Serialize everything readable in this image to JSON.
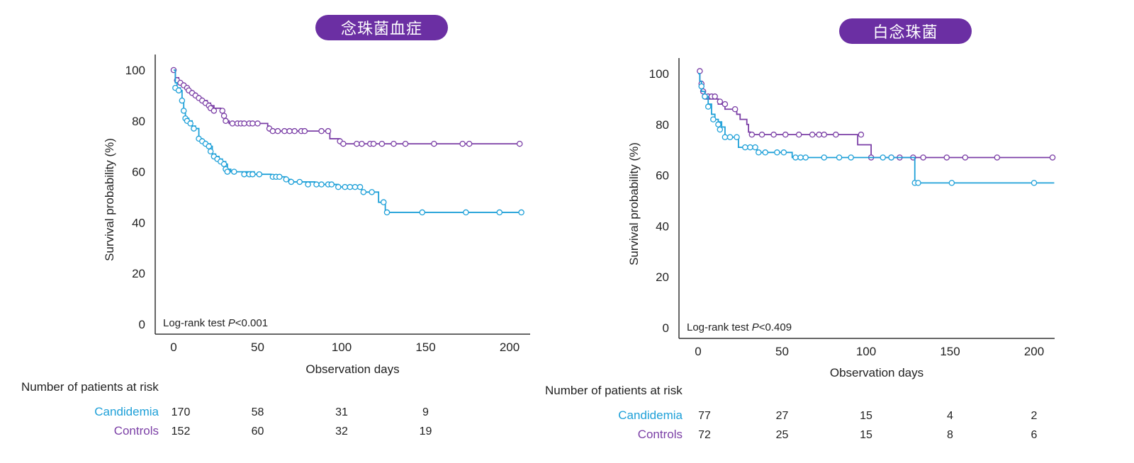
{
  "colors": {
    "candidemia": "#1ea0d8",
    "controls": "#7b3fa6",
    "title_bg": "#6b2fa3"
  },
  "chart_data": [
    {
      "type": "line",
      "subtype": "kaplan-meier",
      "title": "念珠菌血症",
      "xlabel": "Observation days",
      "ylabel": "Survival probability (%)",
      "xlim": [
        0,
        210
      ],
      "ylim": [
        0,
        100
      ],
      "x_ticks": [
        "0",
        "50",
        "100",
        "150",
        "200"
      ],
      "y_ticks": [
        "0",
        "20",
        "40",
        "60",
        "80",
        "100"
      ],
      "annotation_text": "Log-rank test ",
      "annotation_p": "P",
      "annotation_value": "<0.001",
      "series": [
        {
          "name": "Controls",
          "color_key": "controls",
          "steps": [
            [
              0,
              100
            ],
            [
              1,
              97
            ],
            [
              3,
              95
            ],
            [
              5,
              94
            ],
            [
              7,
              93
            ],
            [
              9,
              92
            ],
            [
              11,
              91
            ],
            [
              13,
              90
            ],
            [
              15,
              89
            ],
            [
              17,
              88
            ],
            [
              20,
              87
            ],
            [
              22,
              86
            ],
            [
              24,
              85
            ],
            [
              28,
              84
            ],
            [
              30,
              82
            ],
            [
              31,
              80
            ],
            [
              33,
              79
            ],
            [
              56,
              78
            ],
            [
              57,
              76
            ],
            [
              92,
              76
            ],
            [
              93,
              73
            ],
            [
              98,
              73
            ],
            [
              99,
              71
            ],
            [
              207,
              71
            ]
          ],
          "censors": [
            [
              0,
              100
            ],
            [
              2,
              96
            ],
            [
              4,
              95
            ],
            [
              6,
              94
            ],
            [
              8,
              93
            ],
            [
              9,
              92
            ],
            [
              11,
              91
            ],
            [
              13,
              90
            ],
            [
              15,
              89
            ],
            [
              17,
              88
            ],
            [
              19,
              87
            ],
            [
              21,
              86
            ],
            [
              22,
              85
            ],
            [
              24,
              84
            ],
            [
              29,
              84
            ],
            [
              30,
              82
            ],
            [
              31,
              80
            ],
            [
              35,
              79
            ],
            [
              38,
              79
            ],
            [
              40,
              79
            ],
            [
              42,
              79
            ],
            [
              45,
              79
            ],
            [
              47,
              79
            ],
            [
              50,
              79
            ],
            [
              57,
              77
            ],
            [
              59,
              76
            ],
            [
              62,
              76
            ],
            [
              66,
              76
            ],
            [
              69,
              76
            ],
            [
              72,
              76
            ],
            [
              76,
              76
            ],
            [
              78,
              76
            ],
            [
              88,
              76
            ],
            [
              92,
              76
            ],
            [
              99,
              72
            ],
            [
              101,
              71
            ],
            [
              109,
              71
            ],
            [
              112,
              71
            ],
            [
              117,
              71
            ],
            [
              119,
              71
            ],
            [
              124,
              71
            ],
            [
              131,
              71
            ],
            [
              138,
              71
            ],
            [
              155,
              71
            ],
            [
              172,
              71
            ],
            [
              176,
              71
            ],
            [
              206,
              71
            ]
          ]
        },
        {
          "name": "Candidemia",
          "color_key": "candidemia",
          "steps": [
            [
              0,
              100
            ],
            [
              1,
              95
            ],
            [
              2,
              93
            ],
            [
              4,
              92
            ],
            [
              5,
              88
            ],
            [
              6,
              84
            ],
            [
              7,
              81
            ],
            [
              9,
              80
            ],
            [
              11,
              78
            ],
            [
              13,
              77
            ],
            [
              15,
              73
            ],
            [
              17,
              72
            ],
            [
              19,
              71
            ],
            [
              22,
              70
            ],
            [
              23,
              67
            ],
            [
              25,
              66
            ],
            [
              27,
              65
            ],
            [
              29,
              64
            ],
            [
              31,
              63
            ],
            [
              32,
              61
            ],
            [
              34,
              60
            ],
            [
              42,
              60
            ],
            [
              48,
              59
            ],
            [
              58,
              58
            ],
            [
              67,
              57
            ],
            [
              70,
              56
            ],
            [
              81,
              56
            ],
            [
              84,
              55
            ],
            [
              96,
              55
            ],
            [
              98,
              54
            ],
            [
              110,
              54
            ],
            [
              112,
              52
            ],
            [
              121,
              52
            ],
            [
              122,
              48
            ],
            [
              124,
              48
            ],
            [
              126,
              44
            ],
            [
              207,
              44
            ]
          ],
          "censors": [
            [
              1,
              93
            ],
            [
              3,
              92
            ],
            [
              5,
              88
            ],
            [
              6,
              84
            ],
            [
              7,
              81
            ],
            [
              8,
              80
            ],
            [
              10,
              79
            ],
            [
              12,
              77
            ],
            [
              15,
              73
            ],
            [
              17,
              72
            ],
            [
              19,
              71
            ],
            [
              21,
              70
            ],
            [
              22,
              68
            ],
            [
              24,
              66
            ],
            [
              26,
              65
            ],
            [
              28,
              64
            ],
            [
              30,
              63
            ],
            [
              31,
              61
            ],
            [
              32,
              60
            ],
            [
              36,
              60
            ],
            [
              42,
              59
            ],
            [
              45,
              59
            ],
            [
              47,
              59
            ],
            [
              51,
              59
            ],
            [
              59,
              58
            ],
            [
              61,
              58
            ],
            [
              63,
              58
            ],
            [
              67,
              57
            ],
            [
              70,
              56
            ],
            [
              75,
              56
            ],
            [
              80,
              55
            ],
            [
              85,
              55
            ],
            [
              88,
              55
            ],
            [
              92,
              55
            ],
            [
              94,
              55
            ],
            [
              98,
              54
            ],
            [
              102,
              54
            ],
            [
              105,
              54
            ],
            [
              108,
              54
            ],
            [
              111,
              54
            ],
            [
              113,
              52
            ],
            [
              118,
              52
            ],
            [
              125,
              48
            ],
            [
              127,
              44
            ],
            [
              148,
              44
            ],
            [
              174,
              44
            ],
            [
              194,
              44
            ],
            [
              207,
              44
            ]
          ]
        }
      ],
      "risk_table": {
        "header": "Number of patients at risk",
        "timepoints": [
          0,
          50,
          100,
          150
        ],
        "rows": [
          {
            "label": "Candidemia",
            "color_key": "candidemia",
            "values": [
              "170",
              "58",
              "31",
              "9"
            ]
          },
          {
            "label": "Controls",
            "color_key": "controls",
            "values": [
              "152",
              "60",
              "32",
              "19"
            ]
          }
        ]
      }
    },
    {
      "type": "line",
      "subtype": "kaplan-meier",
      "title": "白念珠菌",
      "xlabel": "Observation days",
      "ylabel": "Survival probability (%)",
      "xlim": [
        0,
        212
      ],
      "ylim": [
        0,
        100
      ],
      "x_ticks": [
        "0",
        "50",
        "100",
        "150",
        "200"
      ],
      "y_ticks": [
        "0",
        "20",
        "40",
        "60",
        "80",
        "100"
      ],
      "annotation_text": "Log-rank test ",
      "annotation_p": "P",
      "annotation_value": "<0.409",
      "series": [
        {
          "name": "Controls",
          "color_key": "controls",
          "steps": [
            [
              0,
              100
            ],
            [
              1,
              97
            ],
            [
              2,
              94
            ],
            [
              3,
              92
            ],
            [
              4,
              90
            ],
            [
              9,
              90
            ],
            [
              12,
              88
            ],
            [
              16,
              86
            ],
            [
              23,
              84
            ],
            [
              25,
              82
            ],
            [
              29,
              80
            ],
            [
              30,
              77
            ],
            [
              31,
              76
            ],
            [
              94,
              76
            ],
            [
              95,
              72
            ],
            [
              102,
              72
            ],
            [
              103,
              67
            ],
            [
              212,
              67
            ]
          ],
          "censors": [
            [
              1,
              101
            ],
            [
              2,
              96
            ],
            [
              3,
              93
            ],
            [
              4,
              91
            ],
            [
              6,
              91
            ],
            [
              8,
              91
            ],
            [
              10,
              91
            ],
            [
              13,
              89
            ],
            [
              16,
              88
            ],
            [
              22,
              86
            ],
            [
              32,
              76
            ],
            [
              38,
              76
            ],
            [
              45,
              76
            ],
            [
              52,
              76
            ],
            [
              60,
              76
            ],
            [
              68,
              76
            ],
            [
              72,
              76
            ],
            [
              75,
              76
            ],
            [
              82,
              76
            ],
            [
              97,
              76
            ],
            [
              103,
              67
            ],
            [
              115,
              67
            ],
            [
              120,
              67
            ],
            [
              128,
              67
            ],
            [
              134,
              67
            ],
            [
              148,
              67
            ],
            [
              159,
              67
            ],
            [
              178,
              67
            ],
            [
              211,
              67
            ]
          ]
        },
        {
          "name": "Candidemia",
          "color_key": "candidemia",
          "steps": [
            [
              0,
              100
            ],
            [
              1,
              97
            ],
            [
              2,
              93
            ],
            [
              4,
              91
            ],
            [
              6,
              88
            ],
            [
              8,
              84
            ],
            [
              10,
              82
            ],
            [
              12,
              81
            ],
            [
              14,
              79
            ],
            [
              16,
              75
            ],
            [
              22,
              75
            ],
            [
              24,
              71
            ],
            [
              33,
              71
            ],
            [
              35,
              69
            ],
            [
              55,
              69
            ],
            [
              56,
              67
            ],
            [
              128,
              67
            ],
            [
              129,
              57
            ],
            [
              212,
              57
            ]
          ],
          "censors": [
            [
              2,
              95
            ],
            [
              4,
              91
            ],
            [
              6,
              87
            ],
            [
              9,
              82
            ],
            [
              12,
              80
            ],
            [
              13,
              78
            ],
            [
              16,
              75
            ],
            [
              19,
              75
            ],
            [
              23,
              75
            ],
            [
              28,
              71
            ],
            [
              31,
              71
            ],
            [
              34,
              71
            ],
            [
              36,
              69
            ],
            [
              40,
              69
            ],
            [
              47,
              69
            ],
            [
              51,
              69
            ],
            [
              58,
              67
            ],
            [
              61,
              67
            ],
            [
              64,
              67
            ],
            [
              75,
              67
            ],
            [
              84,
              67
            ],
            [
              91,
              67
            ],
            [
              110,
              67
            ],
            [
              115,
              67
            ],
            [
              129,
              57
            ],
            [
              131,
              57
            ],
            [
              151,
              57
            ],
            [
              200,
              57
            ]
          ]
        }
      ],
      "risk_table": {
        "header": "Number of patients at risk",
        "timepoints": [
          0,
          50,
          100,
          150,
          200
        ],
        "rows": [
          {
            "label": "Candidemia",
            "color_key": "candidemia",
            "values": [
              "77",
              "27",
              "15",
              "4",
              "2"
            ]
          },
          {
            "label": "Controls",
            "color_key": "controls",
            "values": [
              "72",
              "25",
              "15",
              "8",
              "6"
            ]
          }
        ]
      }
    }
  ]
}
